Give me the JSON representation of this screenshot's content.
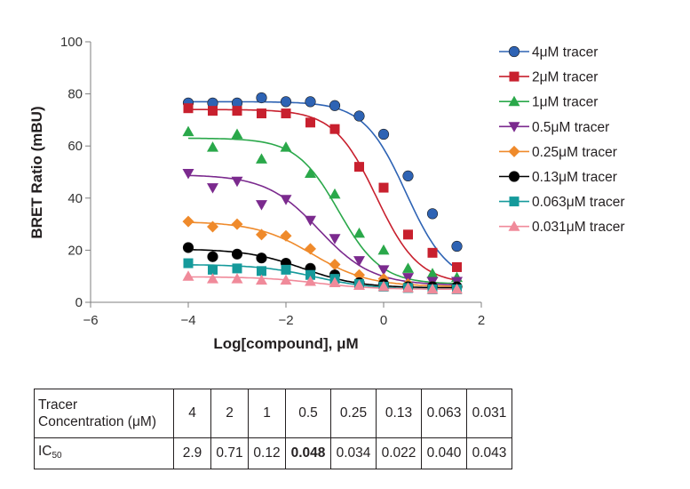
{
  "chart_data": {
    "type": "scatter",
    "title": "",
    "xlabel": "Log[compound], μM",
    "ylabel": "BRET Ratio (mBU)",
    "xlim": [
      -6,
      2
    ],
    "ylim": [
      0,
      100
    ],
    "xticks": [
      -6,
      -4,
      -2,
      0,
      2
    ],
    "xtick_labels": [
      "−6",
      "−4",
      "−2",
      "0",
      "2"
    ],
    "yticks": [
      0,
      20,
      40,
      60,
      80,
      100
    ],
    "ytick_labels": [
      "0",
      "20",
      "40",
      "60",
      "80",
      "100"
    ],
    "legend_position": "right",
    "x": [
      -4,
      -3.5,
      -3,
      -2.5,
      -2,
      -1.5,
      -1,
      -0.5,
      0,
      0.5,
      1,
      1.5
    ],
    "series": [
      {
        "name": "4μM tracer",
        "marker": "circle",
        "color": "#2e63b4",
        "values": [
          76.5,
          76.5,
          76.5,
          78.5,
          77,
          77,
          75.5,
          71.5,
          64.5,
          48.5,
          34,
          21.5
        ],
        "fit": {
          "top": 77,
          "bottom": 7,
          "log_ic50": 0.46,
          "hill": 1.0
        }
      },
      {
        "name": "2μM tracer",
        "marker": "square",
        "color": "#c8202e",
        "values": [
          74.5,
          73.5,
          73.5,
          72.5,
          72.5,
          69,
          66.5,
          52,
          44,
          26,
          19,
          13.5
        ],
        "fit": {
          "top": 74,
          "bottom": 7,
          "log_ic50": -0.15,
          "hill": 1.0
        }
      },
      {
        "name": "1μM tracer",
        "marker": "triangle-up",
        "color": "#2aa84a",
        "values": [
          65.5,
          59.5,
          64.5,
          55,
          59.5,
          49.5,
          41.5,
          26.5,
          20,
          13,
          11,
          9.5
        ],
        "fit": {
          "top": 63,
          "bottom": 7,
          "log_ic50": -0.92,
          "hill": 1.0
        }
      },
      {
        "name": "0.5μM tracer",
        "marker": "triangle-down",
        "color": "#7b2a8e",
        "values": [
          49.5,
          44,
          46.5,
          37.5,
          39.5,
          31.5,
          24.5,
          16,
          12.5,
          9.5,
          8,
          8
        ],
        "fit": {
          "top": 49,
          "bottom": 6.5,
          "log_ic50": -1.32,
          "hill": 0.8
        }
      },
      {
        "name": "0.25μM tracer",
        "marker": "diamond",
        "color": "#ef8a2b",
        "values": [
          31,
          29,
          30,
          26,
          25.5,
          20.5,
          14.5,
          10.5,
          9,
          7,
          6,
          6
        ],
        "fit": {
          "top": 31,
          "bottom": 6,
          "log_ic50": -1.46,
          "hill": 0.75
        }
      },
      {
        "name": "0.13μM tracer",
        "marker": "circle",
        "color": "#000000",
        "values": [
          21,
          17.5,
          18.5,
          17,
          15,
          13,
          10.5,
          7.5,
          7,
          6,
          6,
          6
        ],
        "fit": {
          "top": 20.5,
          "bottom": 5.5,
          "log_ic50": -1.65,
          "hill": 0.75
        }
      },
      {
        "name": "0.063μM tracer",
        "marker": "square",
        "color": "#159a9b",
        "values": [
          15,
          12.5,
          13,
          12,
          12.5,
          10.5,
          9,
          7,
          6,
          5.5,
          5,
          5
        ],
        "fit": {
          "top": 14.5,
          "bottom": 5,
          "log_ic50": -1.4,
          "hill": 0.75
        }
      },
      {
        "name": "0.031μM tracer",
        "marker": "triangle-up",
        "color": "#f08a9a",
        "values": [
          10,
          9,
          9,
          8.5,
          8.5,
          8,
          7.5,
          6.5,
          6,
          5.5,
          5,
          5
        ],
        "fit": {
          "top": 9.8,
          "bottom": 5,
          "log_ic50": -1.37,
          "hill": 0.75
        }
      }
    ]
  },
  "table": {
    "header_label_line1": "Tracer",
    "header_label_line2": "Concentration (μM)",
    "concentrations": [
      "4",
      "2",
      "1",
      "0.5",
      "0.25",
      "0.13",
      "0.063",
      "0.031"
    ],
    "ic50_label": "IC",
    "ic50_subscript": "50",
    "ic50_values": [
      "2.9",
      "0.71",
      "0.12",
      "0.048",
      "0.034",
      "0.022",
      "0.040",
      "0.043"
    ],
    "bold_index": 3
  }
}
